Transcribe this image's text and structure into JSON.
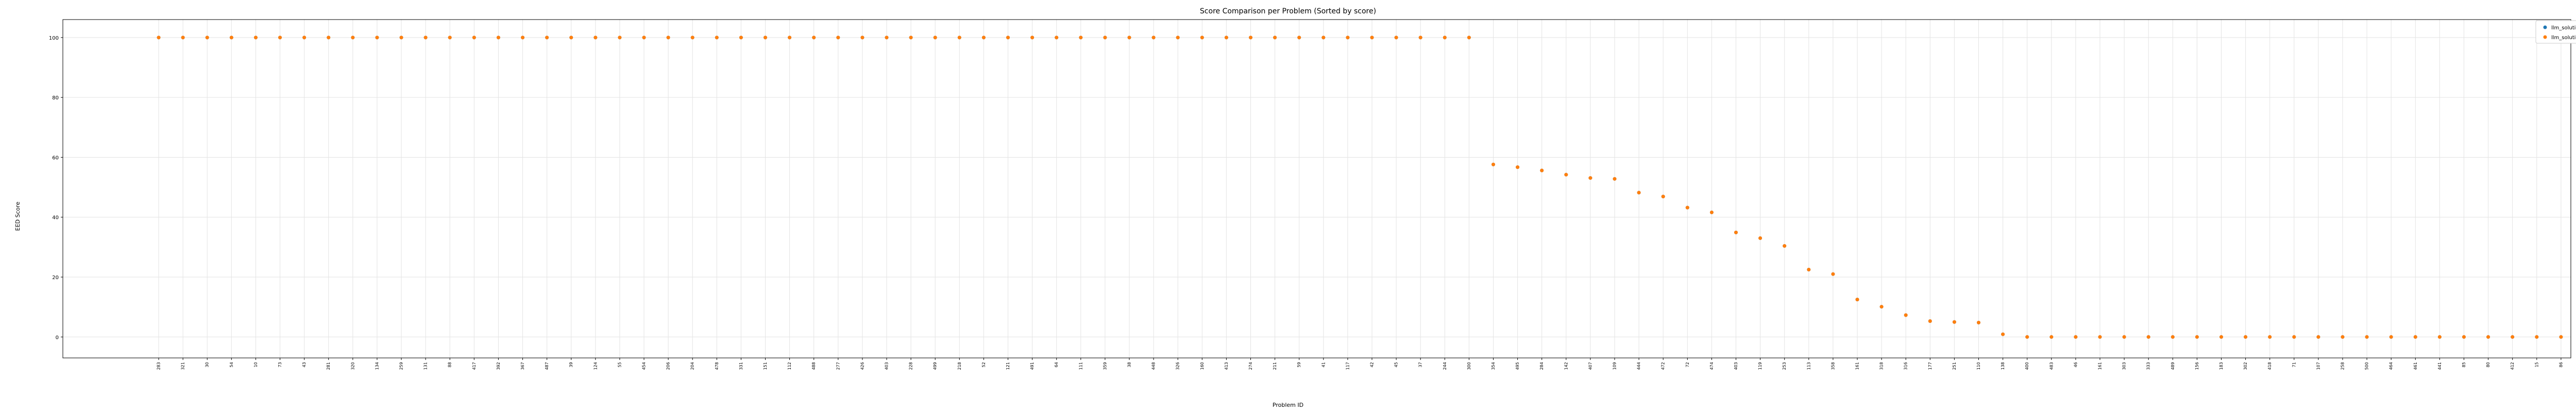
{
  "chart_data": {
    "type": "scatter",
    "title": "Score Comparison per Problem (Sorted by score)",
    "xlabel": "Problem ID",
    "ylabel": "EED Score",
    "ylim": [
      -7,
      106
    ],
    "yticks": [
      0,
      20,
      40,
      60,
      80,
      100
    ],
    "grid": true,
    "legend_position": "top-right",
    "categories": [
      "283",
      "321",
      "30",
      "54",
      "10",
      "73",
      "43",
      "281",
      "320",
      "134",
      "259",
      "131",
      "88",
      "417",
      "392",
      "367",
      "487",
      "39",
      "124",
      "55",
      "454",
      "206",
      "204",
      "478",
      "331",
      "151",
      "112",
      "488",
      "277",
      "426",
      "403",
      "228",
      "499",
      "218",
      "52",
      "121",
      "491",
      "64",
      "111",
      "359",
      "38",
      "448",
      "326",
      "160",
      "413",
      "274",
      "211",
      "59",
      "41",
      "117",
      "42",
      "45",
      "37",
      "244",
      "300",
      "354",
      "495",
      "284",
      "142",
      "407",
      "109",
      "444",
      "472",
      "72",
      "474",
      "403",
      "119",
      "253",
      "113",
      "358",
      "161",
      "318",
      "316",
      "177",
      "251",
      "110",
      "138",
      "400",
      "483",
      "46",
      "161",
      "303",
      "333",
      "489",
      "156",
      "183",
      "302",
      "418",
      "71",
      "107",
      "258",
      "500",
      "464",
      "461",
      "441",
      "85",
      "80",
      "412",
      "15",
      "86"
    ],
    "series": [
      {
        "name": "llm_solution_score",
        "color": "#1f77b4",
        "values": [
          100,
          100,
          100,
          100,
          100,
          100,
          100,
          100,
          100,
          100,
          100,
          100,
          100,
          100,
          100,
          100,
          100,
          100,
          100,
          100,
          100,
          100,
          100,
          100,
          100,
          100,
          100,
          100,
          100,
          100,
          100,
          100,
          100,
          100,
          100,
          100,
          100,
          100,
          100,
          100,
          100,
          100,
          100,
          100,
          100,
          100,
          100,
          100,
          100,
          100,
          100,
          100,
          100,
          100,
          100,
          57.6,
          56.7,
          55.6,
          54.2,
          53.1,
          52.8,
          48.2,
          46.9,
          43.2,
          41.6,
          34.9,
          33.0,
          30.4,
          22.5,
          21.0,
          12.5,
          10.1,
          7.3,
          5.3,
          5.0,
          4.8,
          0.9,
          0,
          0,
          0,
          0,
          0,
          0,
          0,
          0,
          0,
          0,
          0,
          0,
          0,
          0,
          0,
          0,
          0,
          0,
          0,
          0,
          0,
          0,
          0
        ]
      },
      {
        "name": "llm_solution_v1_score",
        "color": "#ff7f0e",
        "values": [
          100,
          100,
          100,
          100,
          100,
          100,
          100,
          100,
          100,
          100,
          100,
          100,
          100,
          100,
          100,
          100,
          100,
          100,
          100,
          100,
          100,
          100,
          100,
          100,
          100,
          100,
          100,
          100,
          100,
          100,
          100,
          100,
          100,
          100,
          100,
          100,
          100,
          100,
          100,
          100,
          100,
          100,
          100,
          100,
          100,
          100,
          100,
          100,
          100,
          100,
          100,
          100,
          100,
          100,
          100,
          57.6,
          56.7,
          55.6,
          54.2,
          53.1,
          52.8,
          48.2,
          46.9,
          43.2,
          41.6,
          34.9,
          33.0,
          30.4,
          22.5,
          21.0,
          12.5,
          10.1,
          7.3,
          5.3,
          5.0,
          4.8,
          0.9,
          0,
          0,
          0,
          0,
          0,
          0,
          0,
          0,
          0,
          0,
          0,
          0,
          0,
          0,
          0,
          0,
          0,
          0,
          0,
          0,
          0,
          0,
          0
        ]
      }
    ]
  }
}
